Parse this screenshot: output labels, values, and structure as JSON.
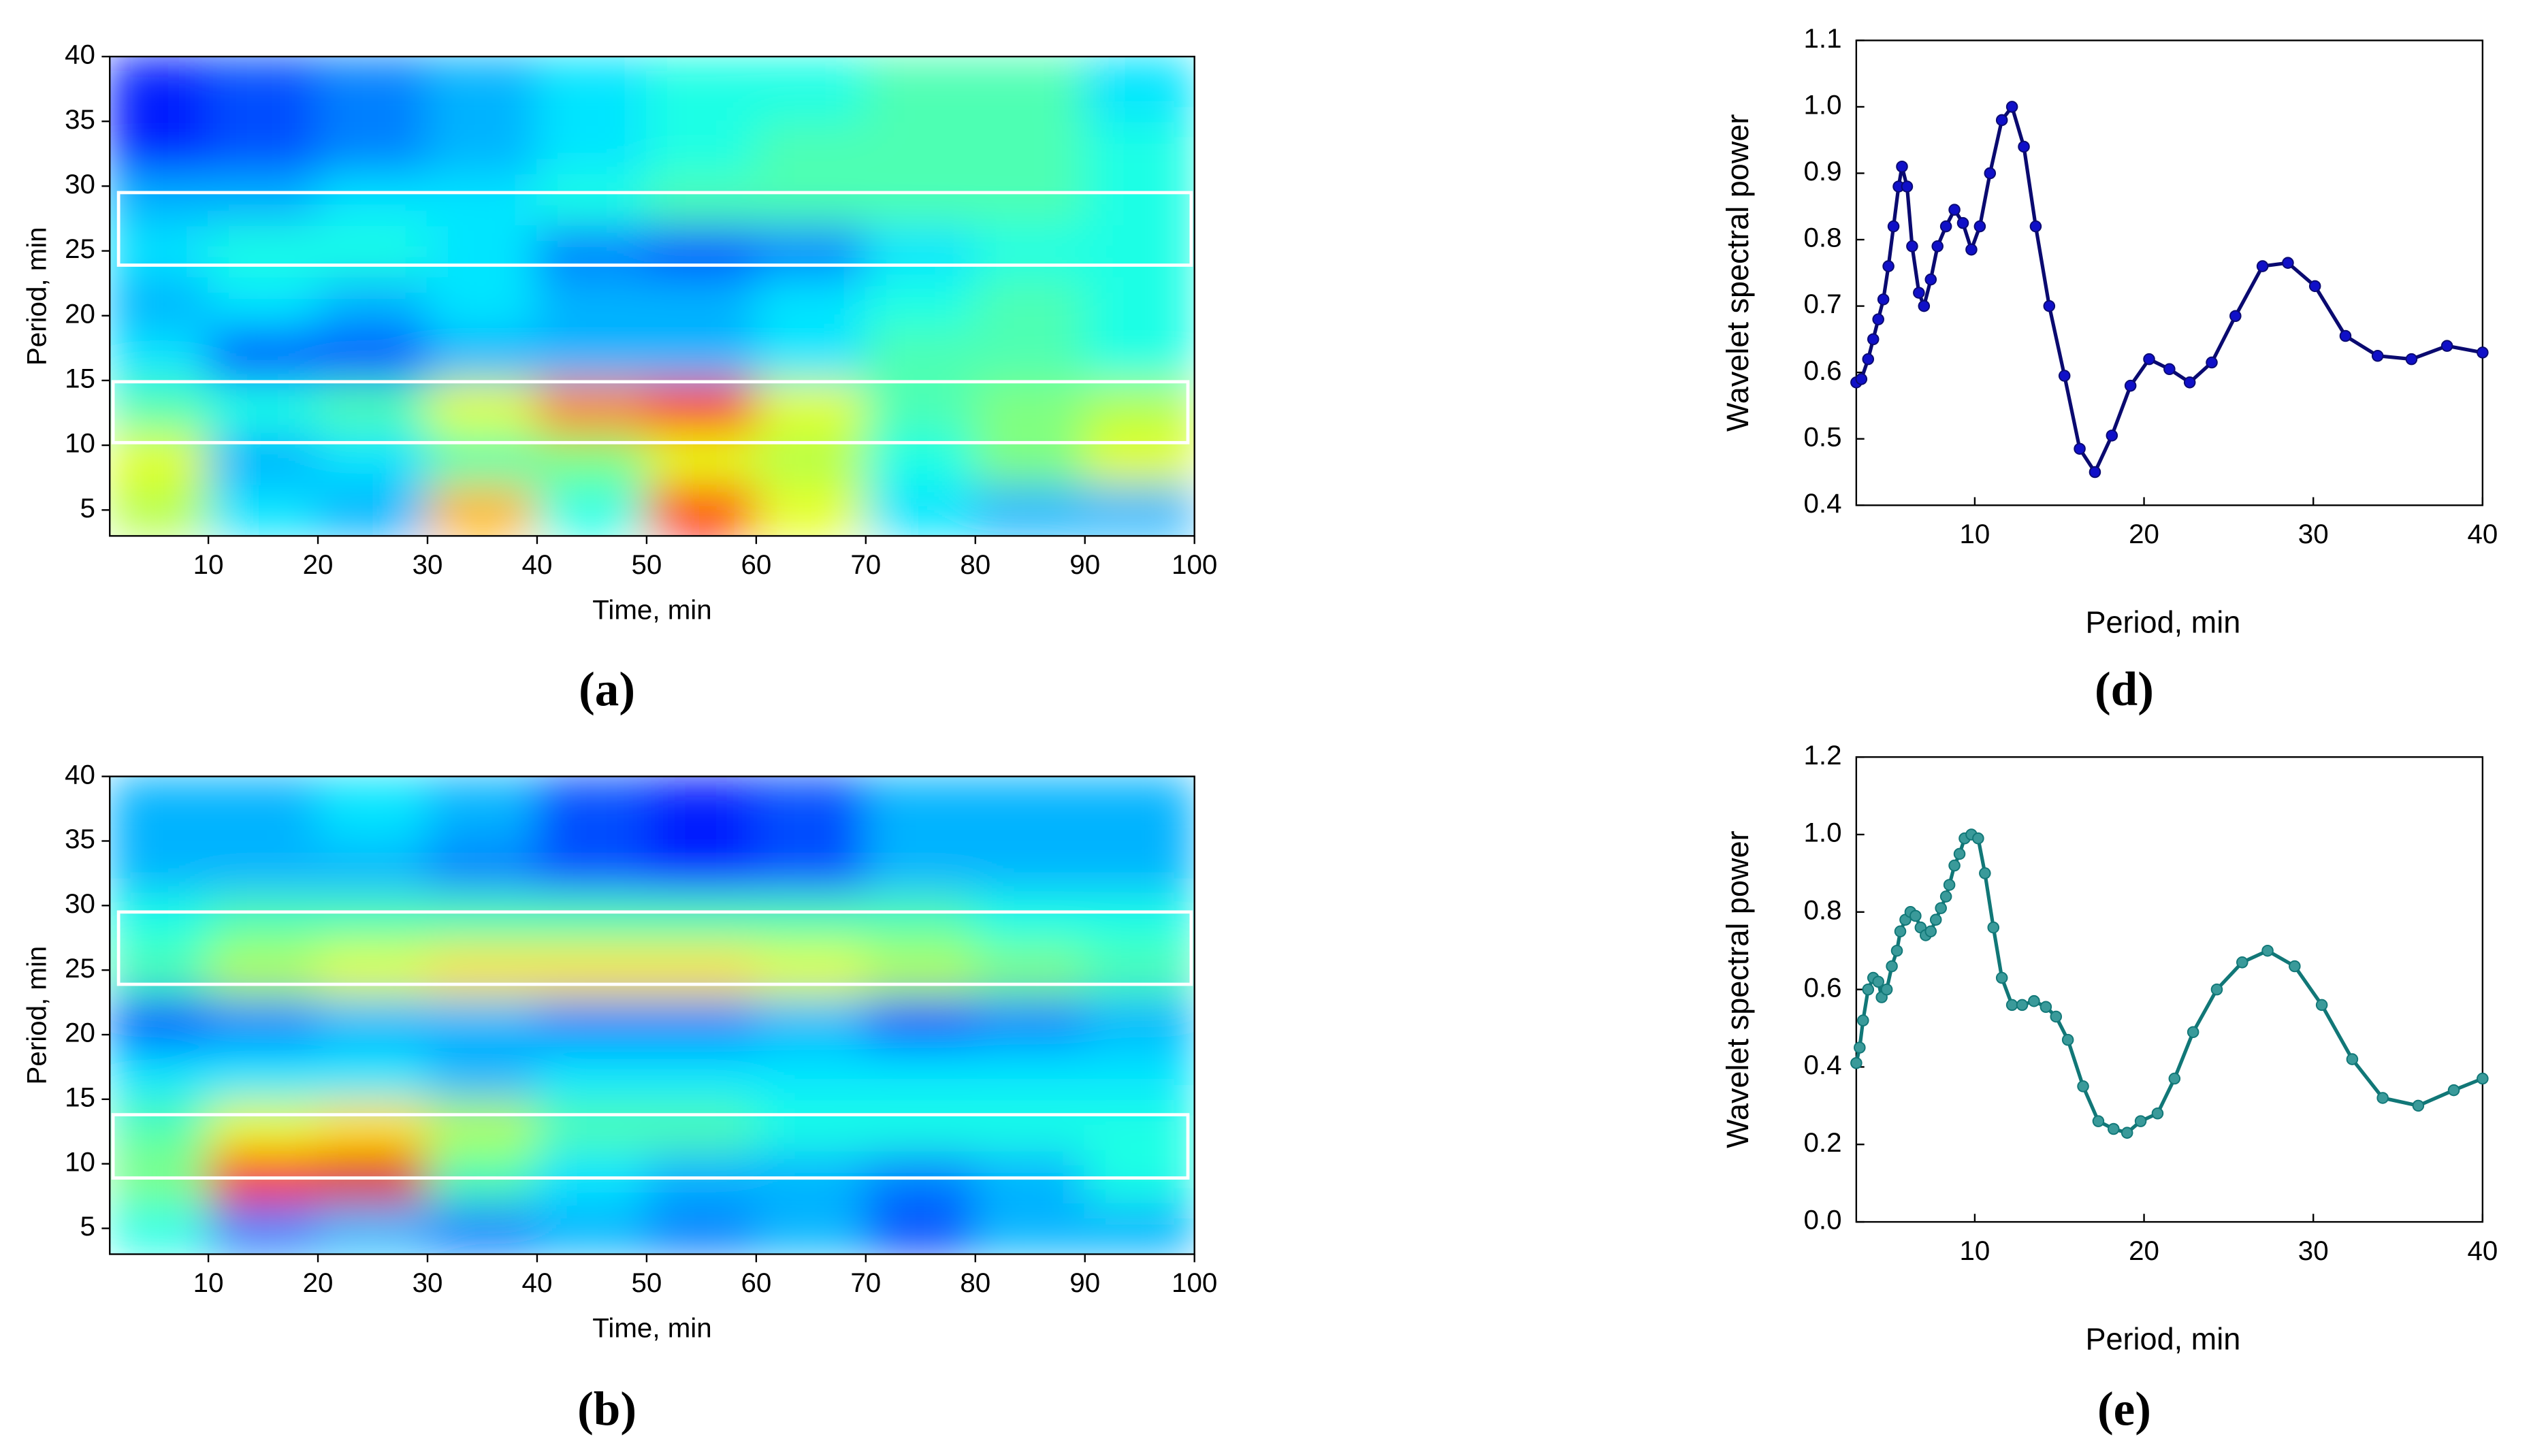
{
  "chart_data": [
    {
      "type": "contour",
      "caption": "(a)",
      "xlabel": "Time, min",
      "ylabel": "Period, min",
      "xlim": [
        1,
        100
      ],
      "ylim": [
        3,
        40
      ],
      "xticks": [
        10,
        20,
        30,
        40,
        50,
        60,
        70,
        80,
        90,
        100
      ],
      "yticks": [
        5,
        10,
        15,
        20,
        25,
        30,
        35,
        40
      ],
      "colormap": "jet",
      "x": [
        5,
        15,
        25,
        35,
        45,
        55,
        65,
        75,
        85,
        95
      ],
      "y": [
        5,
        9,
        13,
        17,
        21,
        25,
        29,
        33,
        37
      ],
      "z": [
        [
          0.55,
          0.35,
          0.3,
          0.7,
          0.4,
          0.85,
          0.6,
          0.35,
          0.3,
          0.3
        ],
        [
          0.6,
          0.3,
          0.35,
          0.45,
          0.5,
          0.6,
          0.55,
          0.4,
          0.5,
          0.6
        ],
        [
          0.45,
          0.4,
          0.45,
          0.6,
          0.75,
          0.85,
          0.6,
          0.45,
          0.5,
          0.55
        ],
        [
          0.35,
          0.2,
          0.2,
          0.3,
          0.3,
          0.3,
          0.35,
          0.45,
          0.45,
          0.4
        ],
        [
          0.3,
          0.35,
          0.3,
          0.35,
          0.3,
          0.3,
          0.35,
          0.4,
          0.45,
          0.4
        ],
        [
          0.35,
          0.4,
          0.4,
          0.35,
          0.25,
          0.2,
          0.25,
          0.35,
          0.4,
          0.4
        ],
        [
          0.3,
          0.3,
          0.35,
          0.35,
          0.4,
          0.45,
          0.45,
          0.45,
          0.45,
          0.4
        ],
        [
          0.15,
          0.2,
          0.25,
          0.3,
          0.35,
          0.4,
          0.45,
          0.45,
          0.45,
          0.4
        ],
        [
          0.15,
          0.2,
          0.25,
          0.3,
          0.35,
          0.4,
          0.4,
          0.45,
          0.45,
          0.35
        ]
      ],
      "highlight_boxes": [
        {
          "x": [
            1.8,
            99.7
          ],
          "y": [
            23.9,
            29.5
          ]
        },
        {
          "x": [
            1.3,
            99.4
          ],
          "y": [
            10.2,
            14.9
          ]
        }
      ]
    },
    {
      "type": "contour",
      "caption": "(b)",
      "xlabel": "Time, min",
      "ylabel": "Period, min",
      "xlim": [
        1,
        100
      ],
      "ylim": [
        3,
        40
      ],
      "xticks": [
        10,
        20,
        30,
        40,
        50,
        60,
        70,
        80,
        90,
        100
      ],
      "yticks": [
        5,
        10,
        15,
        20,
        25,
        30,
        35,
        40
      ],
      "colormap": "jet",
      "x": [
        5,
        15,
        25,
        35,
        45,
        55,
        65,
        75,
        85,
        95
      ],
      "y": [
        5,
        9,
        13,
        17,
        21,
        25,
        29,
        33,
        37
      ],
      "z": [
        [
          0.4,
          0.25,
          0.3,
          0.25,
          0.3,
          0.25,
          0.3,
          0.2,
          0.3,
          0.3
        ],
        [
          0.5,
          0.85,
          0.9,
          0.45,
          0.35,
          0.3,
          0.3,
          0.25,
          0.3,
          0.4
        ],
        [
          0.45,
          0.6,
          0.65,
          0.55,
          0.45,
          0.45,
          0.4,
          0.4,
          0.4,
          0.4
        ],
        [
          0.35,
          0.35,
          0.35,
          0.3,
          0.35,
          0.35,
          0.35,
          0.35,
          0.35,
          0.35
        ],
        [
          0.2,
          0.25,
          0.3,
          0.3,
          0.25,
          0.25,
          0.3,
          0.2,
          0.25,
          0.3
        ],
        [
          0.45,
          0.55,
          0.6,
          0.65,
          0.65,
          0.65,
          0.6,
          0.55,
          0.5,
          0.45
        ],
        [
          0.4,
          0.45,
          0.45,
          0.45,
          0.45,
          0.45,
          0.45,
          0.45,
          0.4,
          0.4
        ],
        [
          0.3,
          0.3,
          0.3,
          0.25,
          0.2,
          0.15,
          0.2,
          0.3,
          0.3,
          0.3
        ],
        [
          0.3,
          0.3,
          0.35,
          0.3,
          0.2,
          0.15,
          0.2,
          0.3,
          0.3,
          0.3
        ]
      ],
      "highlight_boxes": [
        {
          "x": [
            1.8,
            99.7
          ],
          "y": [
            23.9,
            29.5
          ]
        },
        {
          "x": [
            1.3,
            99.4
          ],
          "y": [
            8.9,
            13.8
          ]
        }
      ]
    },
    {
      "type": "line",
      "caption": "(d)",
      "xlabel": "Period, min",
      "ylabel": "Wavelet spectral power",
      "xlim": [
        3,
        40
      ],
      "ylim": [
        0.4,
        1.1
      ],
      "xticks": [
        10,
        20,
        30,
        40
      ],
      "yticks": [
        0.4,
        0.5,
        0.6,
        0.7,
        0.8,
        0.9,
        {
          "value": 1,
          "label": "1.0"
        },
        1.1
      ],
      "color": "#1010c8",
      "line_color": "#0a0a70",
      "x": [
        3.0,
        3.3,
        3.7,
        4.0,
        4.3,
        4.6,
        4.9,
        5.2,
        5.5,
        5.7,
        6.0,
        6.3,
        6.7,
        7.0,
        7.4,
        7.8,
        8.3,
        8.8,
        9.3,
        9.8,
        10.3,
        10.9,
        11.6,
        12.2,
        12.9,
        13.6,
        14.4,
        15.3,
        16.2,
        17.1,
        18.1,
        19.2,
        20.3,
        21.5,
        22.7,
        24.0,
        25.4,
        27.0,
        28.5,
        30.1,
        31.9,
        33.8,
        35.8,
        37.9,
        40.0
      ],
      "values": [
        0.585,
        0.59,
        0.62,
        0.65,
        0.68,
        0.71,
        0.76,
        0.82,
        0.88,
        0.91,
        0.88,
        0.79,
        0.72,
        0.7,
        0.74,
        0.79,
        0.82,
        0.845,
        0.825,
        0.785,
        0.82,
        0.9,
        0.98,
        1.0,
        0.94,
        0.82,
        0.7,
        0.595,
        0.485,
        0.45,
        0.505,
        0.58,
        0.62,
        0.605,
        0.585,
        0.615,
        0.685,
        0.76,
        0.765,
        0.73,
        0.655,
        0.625,
        0.62,
        0.64,
        0.63
      ]
    },
    {
      "type": "line",
      "caption": "(e)",
      "xlabel": "Period, min",
      "ylabel": "Wavelet spectral power",
      "xlim": [
        3,
        40
      ],
      "ylim": [
        0,
        1.2
      ],
      "xticks": [
        10,
        20,
        30,
        40
      ],
      "yticks": [
        {
          "value": 0,
          "label": "0.0"
        },
        0.2,
        0.4,
        0.6,
        0.8,
        {
          "value": 1,
          "label": "1.0"
        },
        1.2
      ],
      "color": "#3a9a9a",
      "line_color": "#117777",
      "x": [
        3.0,
        3.2,
        3.4,
        3.7,
        4.0,
        4.3,
        4.5,
        4.8,
        5.1,
        5.4,
        5.6,
        5.9,
        6.2,
        6.5,
        6.8,
        7.1,
        7.4,
        7.7,
        8.0,
        8.3,
        8.5,
        8.8,
        9.1,
        9.4,
        9.8,
        10.2,
        10.6,
        11.1,
        11.6,
        12.2,
        12.8,
        13.5,
        14.2,
        14.8,
        15.5,
        16.4,
        17.3,
        18.2,
        19.0,
        19.8,
        20.8,
        21.8,
        22.9,
        24.3,
        25.8,
        27.3,
        28.9,
        30.5,
        32.3,
        34.1,
        36.2,
        38.3,
        40.0
      ],
      "values": [
        0.41,
        0.45,
        0.52,
        0.6,
        0.63,
        0.62,
        0.58,
        0.6,
        0.66,
        0.7,
        0.75,
        0.78,
        0.8,
        0.79,
        0.76,
        0.74,
        0.75,
        0.78,
        0.81,
        0.84,
        0.87,
        0.92,
        0.95,
        0.99,
        1.0,
        0.99,
        0.9,
        0.76,
        0.63,
        0.56,
        0.56,
        0.57,
        0.555,
        0.53,
        0.47,
        0.35,
        0.26,
        0.24,
        0.23,
        0.26,
        0.28,
        0.37,
        0.49,
        0.6,
        0.67,
        0.7,
        0.66,
        0.56,
        0.42,
        0.32,
        0.3,
        0.34,
        0.37
      ]
    }
  ]
}
